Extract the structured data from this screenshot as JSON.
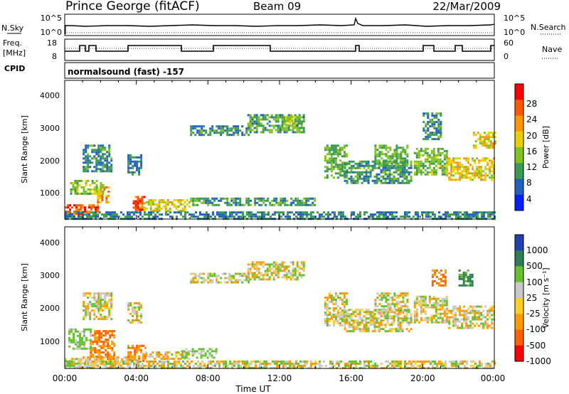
{
  "header": {
    "station": "Prince George (fitACF)",
    "beam": "Beam 09",
    "date": "22/Mar/2009"
  },
  "panels": {
    "nsky_label": "N.Sky",
    "nsky_ticks": [
      "10^5",
      "10^0"
    ],
    "nsearch_label": "N.Search",
    "nsearch_ticks": [
      "10^5",
      "10^0"
    ],
    "freq_label_1": "Freq.",
    "freq_label_2": "[MHz]",
    "freq_ticks": [
      "18",
      "8"
    ],
    "nave_label": "Nave",
    "nave_ticks": [
      "60",
      "0"
    ],
    "cpid_label": "CPID",
    "cpid_text": "normalsound (fast) -157"
  },
  "axes": {
    "ylabel": "Slant Range [km]",
    "xlabel": "Time UT",
    "yticks": [
      "4000",
      "3000",
      "2000",
      "1000"
    ],
    "xticks": [
      "00:00",
      "04:00",
      "08:00",
      "12:00",
      "16:00",
      "20:00",
      "00:00"
    ]
  },
  "colorbars": {
    "power": {
      "label": "Power [dB]",
      "ticks": [
        "28",
        "24",
        "20",
        "16",
        "12",
        "8",
        "4"
      ],
      "colors": [
        "#ff0000",
        "#ff5a00",
        "#ff9600",
        "#e8d000",
        "#80c020",
        "#3a9a50",
        "#2060c0",
        "#0020ff"
      ]
    },
    "velocity": {
      "label": "Velocity [m s⁻¹]",
      "ticks": [
        "1000",
        "500",
        "100",
        "25",
        "-25",
        "-100",
        "-500",
        "-1000"
      ],
      "colors": [
        "#2040b0",
        "#2e7e55",
        "#66c030",
        "#c8c8c8",
        "#ffd020",
        "#ff9a00",
        "#ff6000",
        "#ff0000"
      ]
    }
  },
  "chart_data": [
    {
      "type": "heatmap",
      "title": "Power [dB]",
      "xlabel": "Time UT",
      "ylabel": "Slant Range [km]",
      "xlim_hours": [
        0,
        24
      ],
      "ylim_km": [
        180,
        4500
      ],
      "clim": [
        0,
        30
      ],
      "regions": [
        {
          "t0": 0.0,
          "t1": 1.9,
          "r0": 300,
          "r1": 640,
          "v": 24
        },
        {
          "t0": 1.8,
          "t1": 2.5,
          "r0": 700,
          "r1": 1200,
          "v": 20
        },
        {
          "t0": 3.8,
          "t1": 4.4,
          "r0": 400,
          "r1": 900,
          "v": 24
        },
        {
          "t0": 0.3,
          "t1": 2.2,
          "r0": 1000,
          "r1": 1400,
          "v": 12
        },
        {
          "t0": 4.4,
          "t1": 7.0,
          "r0": 450,
          "r1": 800,
          "v": 15
        },
        {
          "t0": 7.0,
          "t1": 14.0,
          "r0": 600,
          "r1": 850,
          "v": 8
        },
        {
          "t0": 0.0,
          "t1": 24.0,
          "r0": 200,
          "r1": 420,
          "v": 6
        },
        {
          "t0": 1.0,
          "t1": 2.6,
          "r0": 1700,
          "r1": 2500,
          "v": 7
        },
        {
          "t0": 3.5,
          "t1": 4.3,
          "r0": 1600,
          "r1": 2200,
          "v": 6
        },
        {
          "t0": 7.0,
          "t1": 10.3,
          "r0": 2800,
          "r1": 3100,
          "v": 7
        },
        {
          "t0": 10.2,
          "t1": 13.3,
          "r0": 2900,
          "r1": 3450,
          "v": 9
        },
        {
          "t0": 12.3,
          "t1": 13.0,
          "r0": 3100,
          "r1": 3400,
          "v": 14
        },
        {
          "t0": 14.5,
          "t1": 15.8,
          "r0": 1500,
          "r1": 2500,
          "v": 10
        },
        {
          "t0": 15.6,
          "t1": 19.3,
          "r0": 1300,
          "r1": 2000,
          "v": 8
        },
        {
          "t0": 17.3,
          "t1": 19.2,
          "r0": 1900,
          "r1": 2500,
          "v": 10
        },
        {
          "t0": 19.5,
          "t1": 21.4,
          "r0": 1600,
          "r1": 2400,
          "v": 11
        },
        {
          "t0": 20.0,
          "t1": 21.0,
          "r0": 2700,
          "r1": 3500,
          "v": 7
        },
        {
          "t0": 21.3,
          "t1": 24.0,
          "r0": 1400,
          "r1": 2100,
          "v": 16
        },
        {
          "t0": 22.8,
          "t1": 24.0,
          "r0": 2400,
          "r1": 2900,
          "v": 16
        }
      ]
    },
    {
      "type": "heatmap",
      "title": "Velocity [m s⁻¹]",
      "xlabel": "Time UT",
      "ylabel": "Slant Range [km]",
      "xlim_hours": [
        0,
        24
      ],
      "ylim_km": [
        180,
        4500
      ],
      "clim": [
        -1000,
        1000
      ],
      "regions": [
        {
          "t0": 0.0,
          "t1": 1.5,
          "r0": 200,
          "r1": 500,
          "v": 0
        },
        {
          "t0": 1.4,
          "t1": 2.8,
          "r0": 500,
          "r1": 1350,
          "v": -300
        },
        {
          "t0": 0.2,
          "t1": 1.4,
          "r0": 800,
          "r1": 1400,
          "v": 150
        },
        {
          "t0": 1.0,
          "t1": 4.0,
          "r0": 300,
          "r1": 550,
          "v": -80
        },
        {
          "t0": 3.5,
          "t1": 4.5,
          "r0": 400,
          "r1": 900,
          "v": -300
        },
        {
          "t0": 4.5,
          "t1": 7.0,
          "r0": 450,
          "r1": 700,
          "v": -60
        },
        {
          "t0": 6.5,
          "t1": 8.5,
          "r0": 500,
          "r1": 800,
          "v": 120
        },
        {
          "t0": 0.0,
          "t1": 24.0,
          "r0": 200,
          "r1": 420,
          "v": 0
        },
        {
          "t0": 1.0,
          "t1": 2.6,
          "r0": 1700,
          "r1": 2500,
          "v": 0
        },
        {
          "t0": 3.5,
          "t1": 4.3,
          "r0": 1600,
          "r1": 2200,
          "v": 0
        },
        {
          "t0": 7.0,
          "t1": 10.3,
          "r0": 2800,
          "r1": 3100,
          "v": 0
        },
        {
          "t0": 10.2,
          "t1": 13.3,
          "r0": 2900,
          "r1": 3450,
          "v": 0
        },
        {
          "t0": 14.5,
          "t1": 15.8,
          "r0": 1500,
          "r1": 2500,
          "v": 0
        },
        {
          "t0": 15.6,
          "t1": 19.3,
          "r0": 1300,
          "r1": 2000,
          "v": 0
        },
        {
          "t0": 17.3,
          "t1": 19.2,
          "r0": 1900,
          "r1": 2500,
          "v": 0
        },
        {
          "t0": 19.5,
          "t1": 21.4,
          "r0": 1600,
          "r1": 2400,
          "v": 0
        },
        {
          "t0": 20.5,
          "t1": 21.3,
          "r0": 2700,
          "r1": 3200,
          "v": -300
        },
        {
          "t0": 21.3,
          "t1": 24.0,
          "r0": 1400,
          "r1": 2100,
          "v": 0
        },
        {
          "t0": 22.0,
          "t1": 22.8,
          "r0": 2700,
          "r1": 3200,
          "v": 400
        }
      ]
    }
  ]
}
